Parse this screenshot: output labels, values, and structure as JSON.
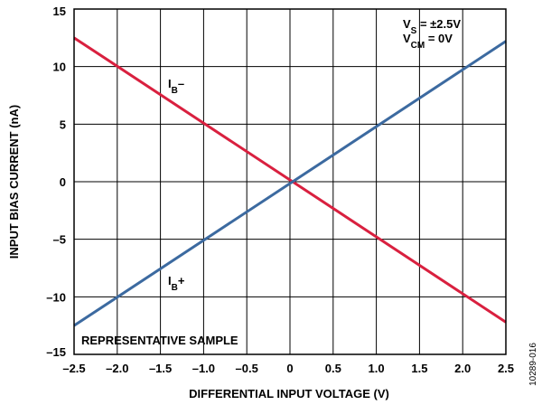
{
  "figure_id": "10289-016",
  "chart_data": {
    "type": "line",
    "xlabel": "DIFFERENTIAL INPUT VOLTAGE (V)",
    "ylabel": "INPUT BIAS CURRENT (nA)",
    "xlim": [
      -2.5,
      2.5
    ],
    "ylim": [
      -15,
      15
    ],
    "x_ticks": [
      -2.5,
      -2.0,
      -1.5,
      -1.0,
      -0.5,
      0,
      0.5,
      1.0,
      1.5,
      2.0,
      2.5
    ],
    "x_tick_labels": [
      "–2.5",
      "–2.0",
      "–1.5",
      "–1.0",
      "–0.5",
      "0",
      "0.5",
      "1.0",
      "1.5",
      "2.0",
      "2.5"
    ],
    "y_ticks": [
      15,
      10,
      5,
      0,
      -5,
      -10,
      -15
    ],
    "y_tick_labels": [
      "15",
      "10",
      "5",
      "0",
      "–5",
      "–10",
      "–15"
    ],
    "grid": true,
    "series": [
      {
        "name_main": "I",
        "name_sub": "B",
        "name_suffix": "–",
        "color": "#d9203f",
        "points": [
          [
            -2.5,
            12.5
          ],
          [
            2.5,
            -12.2
          ]
        ]
      },
      {
        "name_main": "I",
        "name_sub": "B",
        "name_suffix": "+",
        "color": "#3c6aa0",
        "points": [
          [
            -2.5,
            -12.5
          ],
          [
            2.5,
            12.2
          ]
        ]
      }
    ],
    "annotations": {
      "conditions": [
        {
          "main": "V",
          "sub": "S",
          "rest": " = ±2.5V"
        },
        {
          "main": "V",
          "sub": "CM",
          "rest": " = 0V"
        }
      ],
      "sample_note": "REPRESENTATIVE SAMPLE"
    }
  }
}
